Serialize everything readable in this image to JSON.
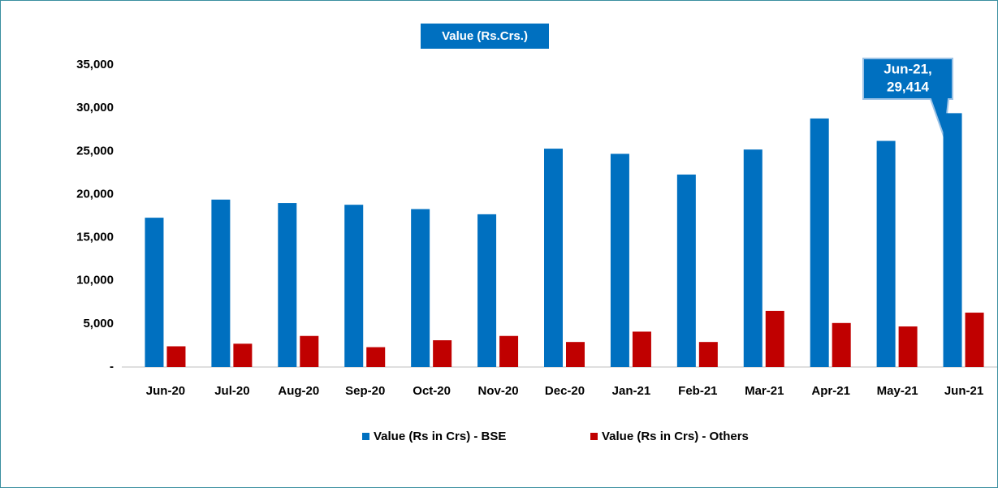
{
  "chart_data": {
    "type": "bar",
    "title": "Value (Rs.Crs.)",
    "categories": [
      "Jun-20",
      "Jul-20",
      "Aug-20",
      "Sep-20",
      "Oct-20",
      "Nov-20",
      "Dec-20",
      "Jan-21",
      "Feb-21",
      "Mar-21",
      "Apr-21",
      "May-21",
      "Jun-21"
    ],
    "series": [
      {
        "name": "Value (Rs in Crs) - BSE",
        "color": "#0070c0",
        "values": [
          17300,
          19400,
          19000,
          18800,
          18300,
          17700,
          25300,
          24700,
          22300,
          25200,
          28800,
          26200,
          29414
        ]
      },
      {
        "name": "Value (Rs in Crs) - Others",
        "color": "#c00000",
        "values": [
          2400,
          2700,
          3600,
          2300,
          3100,
          3600,
          2900,
          4100,
          2900,
          6500,
          5100,
          4700,
          6300
        ]
      }
    ],
    "ylim": [
      0,
      35000
    ],
    "yticks": [
      {
        "value": 0,
        "label": "-"
      },
      {
        "value": 5000,
        "label": "5,000"
      },
      {
        "value": 10000,
        "label": "10,000"
      },
      {
        "value": 15000,
        "label": "15,000"
      },
      {
        "value": 20000,
        "label": "20,000"
      },
      {
        "value": 25000,
        "label": "25,000"
      },
      {
        "value": 30000,
        "label": "30,000"
      },
      {
        "value": 35000,
        "label": "35,000"
      }
    ],
    "grid": false,
    "legend": "bottom",
    "annotation": {
      "lines": [
        "Jun-21,",
        "29,414"
      ]
    }
  }
}
